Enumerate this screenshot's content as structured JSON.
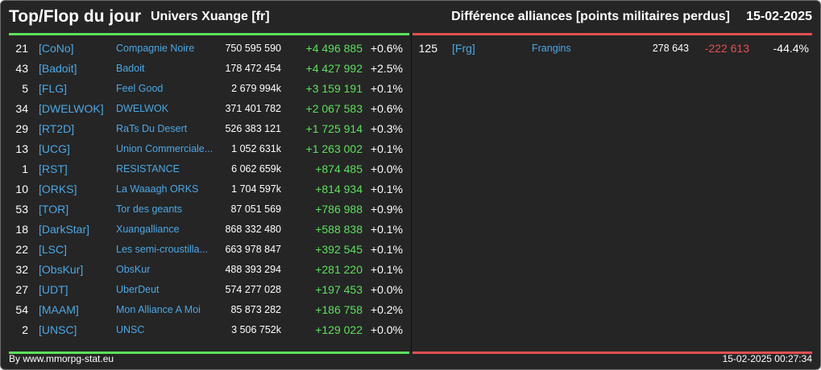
{
  "header": {
    "title": "Top/Flop du jour",
    "universe": "Univers Xuange [fr]",
    "subtitle": "Différence alliances [points militaires perdus]",
    "date": "15-02-2025"
  },
  "colors": {
    "positive": "#5ce15c",
    "negative": "#e05151",
    "link": "#4aa8e6",
    "background": "#252525"
  },
  "top": [
    {
      "rank": "21",
      "tag": "[CoNo]",
      "name": "Compagnie Noire",
      "points": "750 595 590",
      "diff": "+4 496 885",
      "pct": "+0.6%"
    },
    {
      "rank": "43",
      "tag": "[Badoit]",
      "name": "Badoit",
      "points": "178 472 454",
      "diff": "+4 427 992",
      "pct": "+2.5%"
    },
    {
      "rank": "5",
      "tag": "[FLG]",
      "name": "Feel Good",
      "points": "2 679 994k",
      "diff": "+3 159 191",
      "pct": "+0.1%"
    },
    {
      "rank": "34",
      "tag": "[DWELWOK]",
      "name": "DWELWOK",
      "points": "371 401 782",
      "diff": "+2 067 583",
      "pct": "+0.6%"
    },
    {
      "rank": "29",
      "tag": "[RT2D]",
      "name": "RaTs Du Desert",
      "points": "526 383 121",
      "diff": "+1 725 914",
      "pct": "+0.3%"
    },
    {
      "rank": "13",
      "tag": "[UCG]",
      "name": "Union Commerciale...",
      "points": "1 052 631k",
      "diff": "+1 263 002",
      "pct": "+0.1%"
    },
    {
      "rank": "1",
      "tag": "[RST]",
      "name": "RESISTANCE",
      "points": "6 062 659k",
      "diff": "+874 485",
      "pct": "+0.0%"
    },
    {
      "rank": "10",
      "tag": "[ORKS]",
      "name": "La Waaagh ORKS",
      "points": "1 704 597k",
      "diff": "+814 934",
      "pct": "+0.1%"
    },
    {
      "rank": "53",
      "tag": "[TOR]",
      "name": "Tor des geants",
      "points": "87 051 569",
      "diff": "+786 988",
      "pct": "+0.9%"
    },
    {
      "rank": "18",
      "tag": "[DarkStar]",
      "name": "Xuangalliance",
      "points": "868 332 480",
      "diff": "+588 838",
      "pct": "+0.1%"
    },
    {
      "rank": "22",
      "tag": "[LSC]",
      "name": "Les semi-croustilla...",
      "points": "663 978 847",
      "diff": "+392 545",
      "pct": "+0.1%"
    },
    {
      "rank": "32",
      "tag": "[ObsKur]",
      "name": "ObsKur",
      "points": "488 393 294",
      "diff": "+281 220",
      "pct": "+0.1%"
    },
    {
      "rank": "27",
      "tag": "[UDT]",
      "name": "UberDeut",
      "points": "574 277 028",
      "diff": "+197 453",
      "pct": "+0.0%"
    },
    {
      "rank": "54",
      "tag": "[MAAM]",
      "name": "Mon Alliance A Moi",
      "points": "85 873 282",
      "diff": "+186 758",
      "pct": "+0.2%"
    },
    {
      "rank": "2",
      "tag": "[UNSC]",
      "name": "UNSC",
      "points": "3 506 752k",
      "diff": "+129 022",
      "pct": "+0.0%"
    }
  ],
  "flop": [
    {
      "rank": "125",
      "tag": "[Frg]",
      "name": "Frangins",
      "points": "278 643",
      "diff": "-222 613",
      "pct": "-44.4%"
    }
  ],
  "footer": {
    "credit": "By www.mmorpg-stat.eu",
    "timestamp": "15-02-2025 00:27:34"
  }
}
